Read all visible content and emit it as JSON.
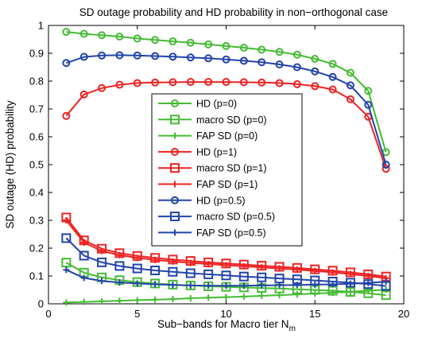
{
  "chart_data": {
    "type": "line",
    "title": "SD outage  probability and HD probability in non−orthogonal case",
    "xlabel": "Sub−bands for Macro tier N",
    "xlabel_subscript": "m",
    "ylabel": "SD outage (HD) probability",
    "xlim": [
      0,
      20
    ],
    "ylim": [
      0,
      1
    ],
    "xticks": [
      "0",
      "5",
      "10",
      "15",
      "20"
    ],
    "yticks": [
      "0",
      "0.1",
      "0.2",
      "0.3",
      "0.4",
      "0.5",
      "0.6",
      "0.7",
      "0.8",
      "0.9",
      "1"
    ],
    "grid": false,
    "legend_position": "center",
    "x": [
      1,
      2,
      3,
      4,
      5,
      6,
      7,
      8,
      9,
      10,
      11,
      12,
      13,
      14,
      15,
      16,
      17,
      18,
      19
    ],
    "series": [
      {
        "name": "HD (p=0)",
        "color": "#44bb33",
        "marker": "circle",
        "values": [
          0.977,
          0.97,
          0.965,
          0.96,
          0.953,
          0.948,
          0.943,
          0.938,
          0.932,
          0.926,
          0.92,
          0.913,
          0.905,
          0.895,
          0.88,
          0.862,
          0.83,
          0.765,
          0.545
        ]
      },
      {
        "name": "macro SD (p=0)",
        "color": "#44bb33",
        "marker": "square",
        "values": [
          0.148,
          0.112,
          0.095,
          0.085,
          0.078,
          0.073,
          0.069,
          0.066,
          0.063,
          0.061,
          0.059,
          0.057,
          0.055,
          0.052,
          0.05,
          0.047,
          0.043,
          0.038,
          0.031
        ]
      },
      {
        "name": "FAP SD (p=0)",
        "color": "#44bb33",
        "marker": "plus",
        "values": [
          0.005,
          0.007,
          0.009,
          0.011,
          0.013,
          0.015,
          0.017,
          0.02,
          0.022,
          0.024,
          0.026,
          0.029,
          0.031,
          0.034,
          0.037,
          0.04,
          0.043,
          0.047,
          0.051
        ]
      },
      {
        "name": "HD (p=1)",
        "color": "#ee2222",
        "marker": "circle",
        "values": [
          0.675,
          0.752,
          0.775,
          0.787,
          0.793,
          0.795,
          0.796,
          0.797,
          0.797,
          0.797,
          0.796,
          0.795,
          0.793,
          0.789,
          0.782,
          0.77,
          0.735,
          0.672,
          0.485
        ]
      },
      {
        "name": "macro SD (p=1)",
        "color": "#ee2222",
        "marker": "square",
        "values": [
          0.31,
          0.228,
          0.198,
          0.182,
          0.172,
          0.165,
          0.159,
          0.154,
          0.149,
          0.145,
          0.141,
          0.137,
          0.133,
          0.129,
          0.124,
          0.119,
          0.113,
          0.106,
          0.098
        ]
      },
      {
        "name": "FAP SD (p=1)",
        "color": "#ee2222",
        "marker": "plus",
        "values": [
          0.3,
          0.22,
          0.19,
          0.175,
          0.165,
          0.158,
          0.152,
          0.147,
          0.143,
          0.139,
          0.135,
          0.131,
          0.127,
          0.123,
          0.118,
          0.113,
          0.107,
          0.1,
          0.092
        ]
      },
      {
        "name": "HD (p=0.5)",
        "color": "#2244aa",
        "marker": "circle",
        "values": [
          0.865,
          0.887,
          0.892,
          0.893,
          0.892,
          0.89,
          0.888,
          0.885,
          0.882,
          0.878,
          0.873,
          0.868,
          0.86,
          0.85,
          0.835,
          0.815,
          0.785,
          0.715,
          0.5
        ]
      },
      {
        "name": "macro SD (p=0.5)",
        "color": "#2244aa",
        "marker": "square",
        "values": [
          0.236,
          0.173,
          0.149,
          0.136,
          0.127,
          0.12,
          0.115,
          0.11,
          0.106,
          0.102,
          0.098,
          0.095,
          0.091,
          0.088,
          0.084,
          0.08,
          0.076,
          0.071,
          0.064
        ]
      },
      {
        "name": "FAP SD (p=0.5)",
        "color": "#2244aa",
        "marker": "plus",
        "values": [
          0.122,
          0.093,
          0.082,
          0.077,
          0.073,
          0.07,
          0.068,
          0.066,
          0.065,
          0.065,
          0.065,
          0.066,
          0.067,
          0.068,
          0.069,
          0.07,
          0.072,
          0.075,
          0.08
        ]
      }
    ]
  }
}
